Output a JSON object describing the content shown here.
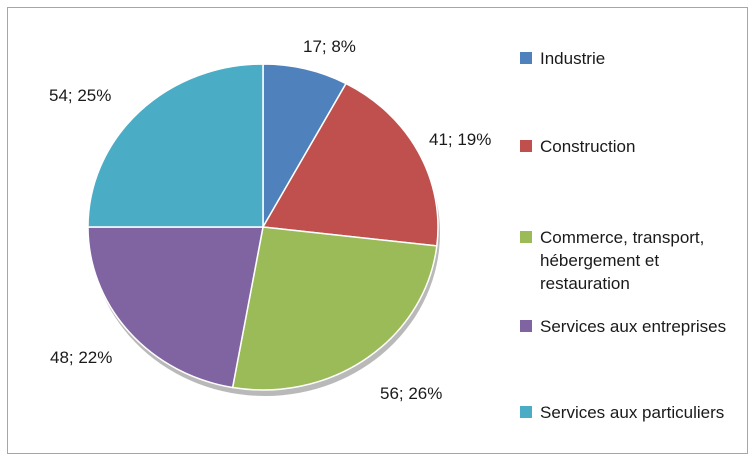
{
  "chart_data": {
    "type": "pie",
    "categories": [
      "Industrie",
      "Construction",
      "Commerce, transport, hébergement et restauration",
      "Services aux entreprises",
      "Services aux particuliers"
    ],
    "values": [
      17,
      41,
      56,
      48,
      54
    ],
    "percentages": [
      "8%",
      "19%",
      "26%",
      "22%",
      "25%"
    ],
    "data_labels": [
      "17; 8%",
      "41; 19%",
      "56; 26%",
      "48; 22%",
      "54; 25%"
    ],
    "colors": [
      "#4f81bd",
      "#c0504d",
      "#9bbb59",
      "#8064a2",
      "#4bacc6"
    ],
    "legend_position": "right",
    "legend": [
      {
        "label": "Industrie",
        "color": "#4f81bd"
      },
      {
        "label": "Construction",
        "color": "#c0504d"
      },
      {
        "label": "Commerce, transport, hébergement et restauration",
        "color": "#9bbb59"
      },
      {
        "label": "Services aux entreprises",
        "color": "#8064a2"
      },
      {
        "label": "Services aux particuliers",
        "color": "#4bacc6"
      }
    ]
  }
}
